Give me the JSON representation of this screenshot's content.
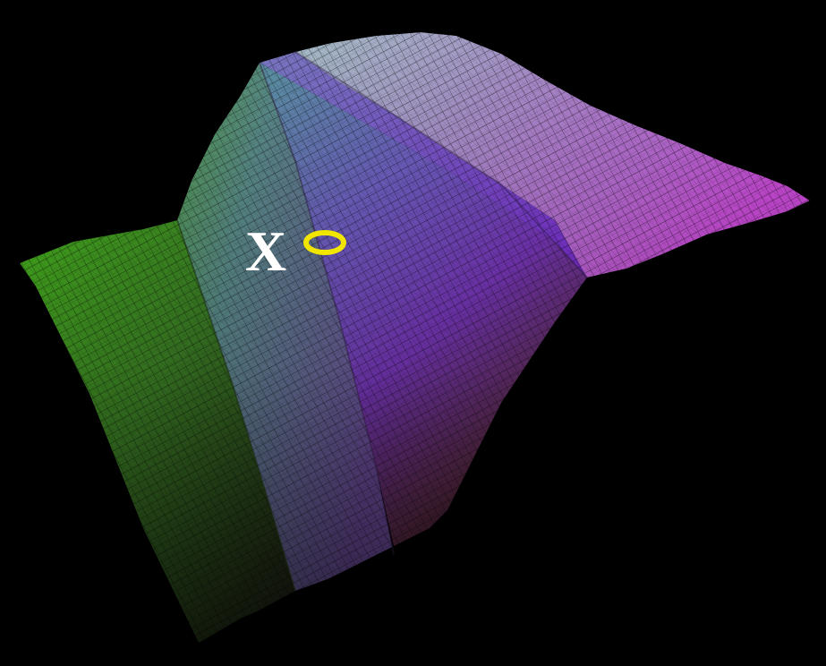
{
  "background_color": "#000000",
  "surface": {
    "description_colors": {
      "near_left_edge": "#3fbf1f",
      "mid_ridge": "#8a5ad0",
      "far_right_edge": "#d04ad8",
      "top_crest": "#c8c8d8",
      "bottom_shadow": "#2a1a18"
    },
    "grid_color": "#000000"
  },
  "marker": {
    "label": "X",
    "label_color": "#ffffff",
    "ring_color": "#f2e600"
  }
}
